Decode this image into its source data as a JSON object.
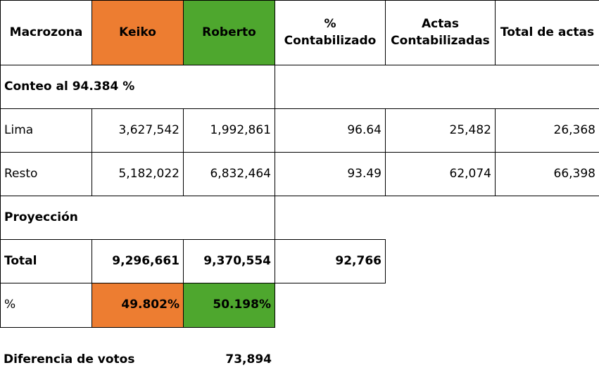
{
  "table": {
    "header": [
      "Macrozona",
      "Keiko",
      "Roberto",
      "%\nContabilizado",
      "Actas\nContabilizadas",
      "Total de actas"
    ],
    "count_label": "Conteo al 94.384 %",
    "rows": [
      [
        "Lima",
        "3,627,542",
        "1,992,861",
        "96.64",
        "25,482",
        "26,368"
      ],
      [
        "Resto",
        "5,182,022",
        "6,832,464",
        "93.49",
        "62,074",
        "66,398"
      ]
    ],
    "projection_label": "Proyección",
    "total": [
      "Total",
      "9,296,661",
      "9,370,554",
      "92,766"
    ],
    "percent": [
      "%",
      "49.802%",
      "50.198%"
    ],
    "difference": {
      "label": "Diferencia de votos",
      "value": "73,894"
    }
  }
}
